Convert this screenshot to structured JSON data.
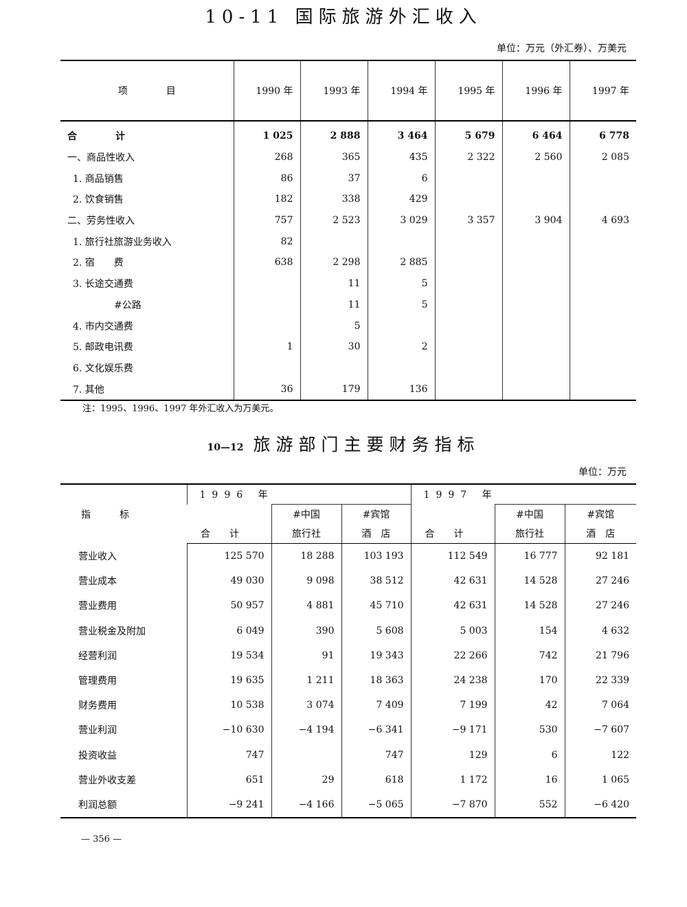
{
  "table1": {
    "title": "10-11 国际旅游外汇收入",
    "unit": "单位：万元（外汇券）、万美元",
    "headers": [
      "项　　　　目",
      "1990 年",
      "1993 年",
      "1994 年",
      "1995 年",
      "1996 年",
      "1997 年"
    ],
    "rows": [
      {
        "label": "合　　　　计",
        "values": [
          "1 025",
          "2 888",
          "3 464",
          "5 679",
          "6 464",
          "6 778"
        ],
        "level": 0,
        "total": true
      },
      {
        "label": "一、商品性收入",
        "values": [
          "268",
          "365",
          "435",
          "2 322",
          "2 560",
          "2 085"
        ],
        "level": 0
      },
      {
        "label": "1. 商品销售",
        "values": [
          "86",
          "37",
          "6",
          "",
          "",
          ""
        ],
        "level": 1
      },
      {
        "label": "2. 饮食销售",
        "values": [
          "182",
          "338",
          "429",
          "",
          "",
          ""
        ],
        "level": 1
      },
      {
        "label": "二、劳务性收入",
        "values": [
          "757",
          "2 523",
          "3 029",
          "3 357",
          "3 904",
          "4 693"
        ],
        "level": 0
      },
      {
        "label": "1. 旅行社旅游业务收入",
        "values": [
          "82",
          "",
          "",
          "",
          "",
          ""
        ],
        "level": 1
      },
      {
        "label": "2. 宿　　费",
        "values": [
          "638",
          "2 298",
          "2 885",
          "",
          "",
          ""
        ],
        "level": 1
      },
      {
        "label": "3. 长途交通费",
        "values": [
          "",
          "11",
          "5",
          "",
          "",
          ""
        ],
        "level": 1
      },
      {
        "label": "#公路",
        "values": [
          "",
          "11",
          "5",
          "",
          "",
          ""
        ],
        "level": 2
      },
      {
        "label": "4. 市内交通费",
        "values": [
          "",
          "5",
          "",
          "",
          "",
          ""
        ],
        "level": 1
      },
      {
        "label": "5. 邮政电讯费",
        "values": [
          "1",
          "30",
          "2",
          "",
          "",
          ""
        ],
        "level": 1
      },
      {
        "label": "6. 文化娱乐费",
        "values": [
          "",
          "",
          "",
          "",
          "",
          ""
        ],
        "level": 1
      },
      {
        "label": "7. 其他",
        "values": [
          "36",
          "179",
          "136",
          "",
          "",
          ""
        ],
        "level": 1
      }
    ],
    "note": "注：1995、1996、1997 年外汇收入为万美元。"
  },
  "table2": {
    "number": "10—12",
    "title": "旅游部门主要财务指标",
    "unit": "单位：万元",
    "label_header": "指　　　标",
    "years": [
      "1996 年",
      "1997 年"
    ],
    "sub_top": [
      "",
      "#中国",
      "#宾馆",
      "",
      "#中国",
      "#宾馆"
    ],
    "sub_bottom": [
      "合　　计",
      "旅行社",
      "酒　店",
      "合　　计",
      "旅行社",
      "酒　店"
    ],
    "rows": [
      {
        "label": "营业收入",
        "values": [
          "125 570",
          "18 288",
          "103 193",
          "112 549",
          "16 777",
          "92 181"
        ]
      },
      {
        "label": "营业成本",
        "values": [
          "49 030",
          "9 098",
          "38 512",
          "42 631",
          "14 528",
          "27 246"
        ]
      },
      {
        "label": "营业费用",
        "values": [
          "50 957",
          "4 881",
          "45 710",
          "42 631",
          "14 528",
          "27 246"
        ]
      },
      {
        "label": "营业税金及附加",
        "values": [
          "6 049",
          "390",
          "5 608",
          "5 003",
          "154",
          "4 632"
        ]
      },
      {
        "label": "经营利润",
        "values": [
          "19 534",
          "91",
          "19 343",
          "22 266",
          "742",
          "21 796"
        ]
      },
      {
        "label": "管理费用",
        "values": [
          "19 635",
          "1 211",
          "18 363",
          "24 238",
          "170",
          "22 339"
        ]
      },
      {
        "label": "财务费用",
        "values": [
          "10 538",
          "3 074",
          "7 409",
          "7 199",
          "42",
          "7 064"
        ]
      },
      {
        "label": "营业利润",
        "values": [
          "−10 630",
          "−4 194",
          "−6 341",
          "−9 171",
          "530",
          "−7 607"
        ]
      },
      {
        "label": "投资收益",
        "values": [
          "747",
          "",
          "747",
          "129",
          "6",
          "122"
        ]
      },
      {
        "label": "营业外收支差",
        "values": [
          "651",
          "29",
          "618",
          "1 172",
          "16",
          "1 065"
        ]
      },
      {
        "label": "利润总额",
        "values": [
          "−9 241",
          "−4 166",
          "−5 065",
          "−7 870",
          "552",
          "−6 420"
        ]
      }
    ]
  },
  "page_number": "— 356 —"
}
